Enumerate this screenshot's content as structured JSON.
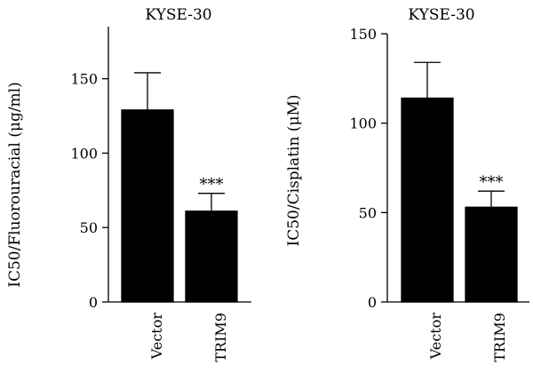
{
  "chart_data": [
    {
      "type": "bar",
      "title": "KYSE-30",
      "ylabel": "IC50/Fluorouracial (μg/ml)",
      "xlabel": "",
      "categories": [
        "Vector",
        "TRIM9"
      ],
      "values": [
        129,
        61
      ],
      "errors": [
        25,
        12
      ],
      "annotations": [
        "",
        "***"
      ],
      "ylim": [
        0,
        185
      ],
      "yticks": [
        0,
        50,
        100,
        150
      ],
      "bar_color": "#000000",
      "grid": false
    },
    {
      "type": "bar",
      "title": "KYSE-30",
      "ylabel": "IC50/Cisplatin (μM)",
      "xlabel": "",
      "categories": [
        "Vector",
        "TRIM9"
      ],
      "values": [
        114,
        53
      ],
      "errors": [
        20,
        9
      ],
      "annotations": [
        "",
        "***"
      ],
      "ylim": [
        0,
        150
      ],
      "yticks": [
        0,
        50,
        100,
        150
      ],
      "bar_color": "#000000",
      "grid": false
    }
  ]
}
